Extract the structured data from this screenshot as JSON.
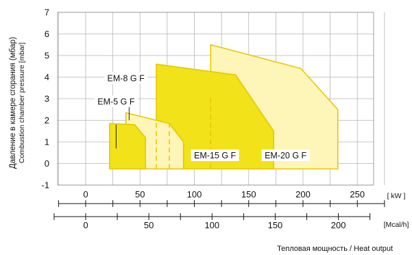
{
  "chart_data": {
    "type": "area",
    "y_axis": {
      "label_ru": "Давление в камере сгорания (мбар)",
      "label_en": "Combustion chamber pressure [mbar]",
      "ylim": [
        -1,
        7
      ],
      "ticks": [
        -1,
        0,
        1,
        2,
        3,
        4,
        5,
        6,
        7
      ],
      "grid": true
    },
    "x_axis_kw": {
      "unit": "[ kW ]",
      "range": [
        -20,
        300
      ],
      "ticks": [
        0,
        50,
        100,
        150,
        200,
        250
      ]
    },
    "x_axis_mcal": {
      "unit": "[Mcal/h]",
      "ticks": [
        0,
        50,
        100,
        150,
        200
      ]
    },
    "x_title_ru": "Тепловая мощность",
    "x_title_sep": " / ",
    "x_title_en": "Heat output",
    "series": [
      {
        "name": "EM-20 G F",
        "color": "#fef5b8",
        "points": [
          [
            115,
            -0.25
          ],
          [
            115,
            5.5
          ],
          [
            198,
            4.4
          ],
          [
            232,
            2.5
          ],
          [
            232,
            -0.25
          ]
        ]
      },
      {
        "name": "EM-15 G F",
        "color": "#f1e21a",
        "points": [
          [
            65,
            -0.25
          ],
          [
            65,
            4.6
          ],
          [
            138,
            4.1
          ],
          [
            173,
            1.5
          ],
          [
            173,
            -0.25
          ]
        ]
      },
      {
        "name": "EM-8 G F",
        "color": "#fef5b8",
        "points": [
          [
            37,
            -0.25
          ],
          [
            37,
            2.35
          ],
          [
            77,
            1.85
          ],
          [
            90,
            1.0
          ],
          [
            90,
            -0.25
          ]
        ]
      },
      {
        "name": "EM-5 G F",
        "color": "#f1e21a",
        "points": [
          [
            22,
            -0.25
          ],
          [
            22,
            1.85
          ],
          [
            45,
            1.8
          ],
          [
            55,
            1.2
          ],
          [
            55,
            -0.25
          ]
        ]
      }
    ],
    "dashed_separators": [
      {
        "x": 65,
        "y_range": [
          -0.25,
          2.0
        ]
      },
      {
        "x": 77,
        "y_range": [
          -0.25,
          1.85
        ]
      },
      {
        "x": 115,
        "y_range": [
          -0.25,
          3.2
        ]
      }
    ],
    "pointer_lines": [
      {
        "x": 28,
        "y_range": [
          0.7,
          1.8
        ]
      },
      {
        "x": 40,
        "y_range": [
          2.0,
          2.75
        ]
      }
    ],
    "labels": [
      {
        "text": "EM-8 G F",
        "x": 37,
        "y": 3.95
      },
      {
        "text": "EM-5 G F",
        "x": 28,
        "y": 2.88
      },
      {
        "text": "EM-15 G F",
        "x": 119,
        "y": 0.38
      },
      {
        "text": "EM-20 G F",
        "x": 184,
        "y": 0.38
      }
    ]
  }
}
